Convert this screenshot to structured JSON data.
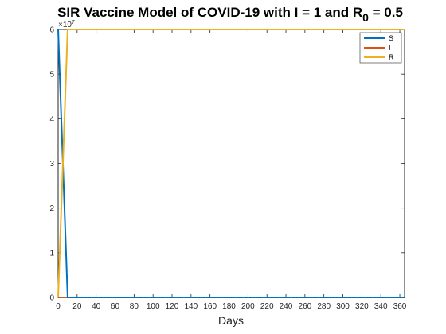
{
  "chart_data": {
    "type": "line",
    "title": "SIR Vaccine Model of COVID-19 with I = 1 and R",
    "title_subscript": "0",
    "title_suffix": " = 0.5",
    "xlabel": "Days",
    "ylabel": "",
    "y_exponent_base": "×10",
    "y_exponent_power": "7",
    "xlim": [
      0,
      365
    ],
    "ylim": [
      0,
      6
    ],
    "x_ticks": [
      0,
      20,
      40,
      60,
      80,
      100,
      120,
      140,
      160,
      180,
      200,
      220,
      240,
      260,
      280,
      300,
      320,
      340,
      360
    ],
    "y_ticks": [
      0,
      1,
      2,
      3,
      4,
      5,
      6
    ],
    "legend_position": "top-right",
    "grid": false,
    "series": [
      {
        "name": "S",
        "color": "#0072BD",
        "x": [
          0,
          10,
          11,
          365
        ],
        "y": [
          6.0,
          0.0,
          0.0,
          0.0
        ]
      },
      {
        "name": "I",
        "color": "#D95319",
        "x": [
          0,
          365
        ],
        "y": [
          0.0,
          0.0
        ]
      },
      {
        "name": "R",
        "color": "#EDB120",
        "x": [
          0,
          10,
          365
        ],
        "y": [
          0.0,
          6.0,
          6.0
        ]
      }
    ]
  }
}
